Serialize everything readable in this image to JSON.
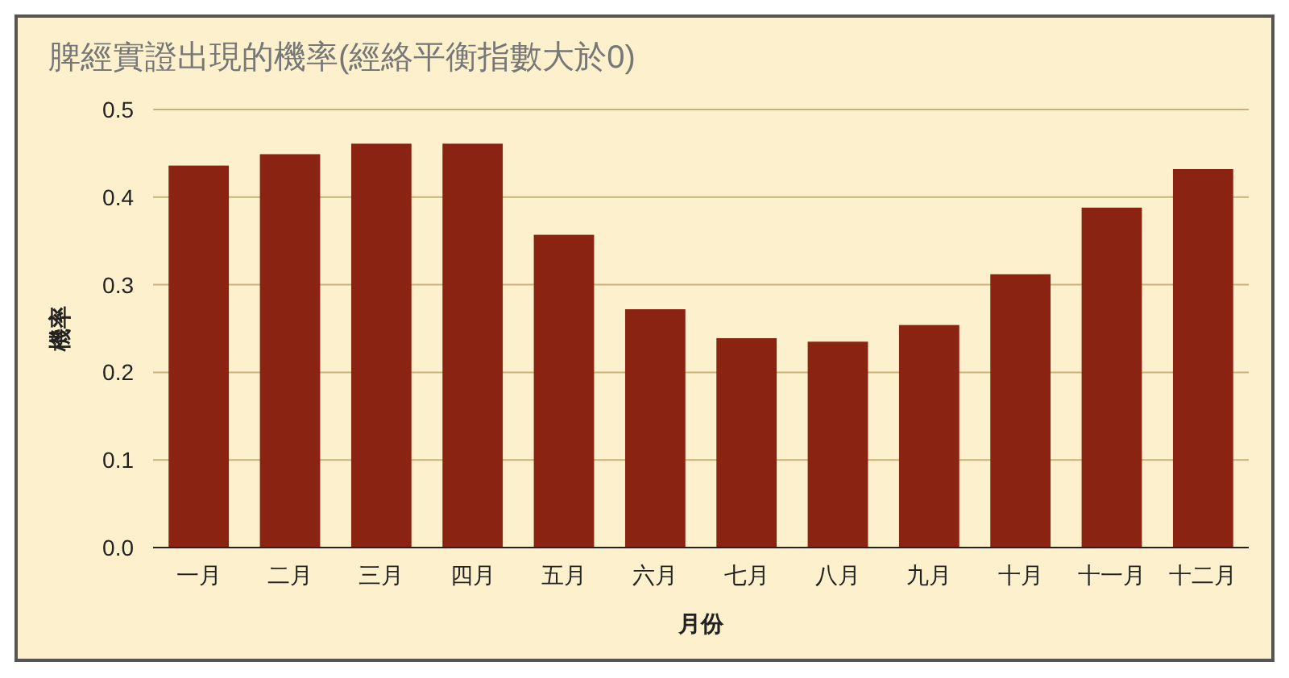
{
  "chart_data": {
    "type": "bar",
    "title": "脾經實證出現的機率(經絡平衡指數大於0)",
    "xlabel": "月份",
    "ylabel": "機率",
    "categories": [
      "一月",
      "二月",
      "三月",
      "四月",
      "五月",
      "六月",
      "七月",
      "八月",
      "九月",
      "十月",
      "十一月",
      "十二月"
    ],
    "values": [
      0.436,
      0.449,
      0.461,
      0.461,
      0.357,
      0.272,
      0.239,
      0.235,
      0.254,
      0.312,
      0.388,
      0.432
    ],
    "color": "#8b2312",
    "ylim": [
      0,
      0.5
    ],
    "yticks": [
      {
        "value": 0,
        "label": "0.0"
      },
      0.1,
      0.2,
      0.3,
      0.4,
      0.5
    ],
    "grid": "y"
  }
}
